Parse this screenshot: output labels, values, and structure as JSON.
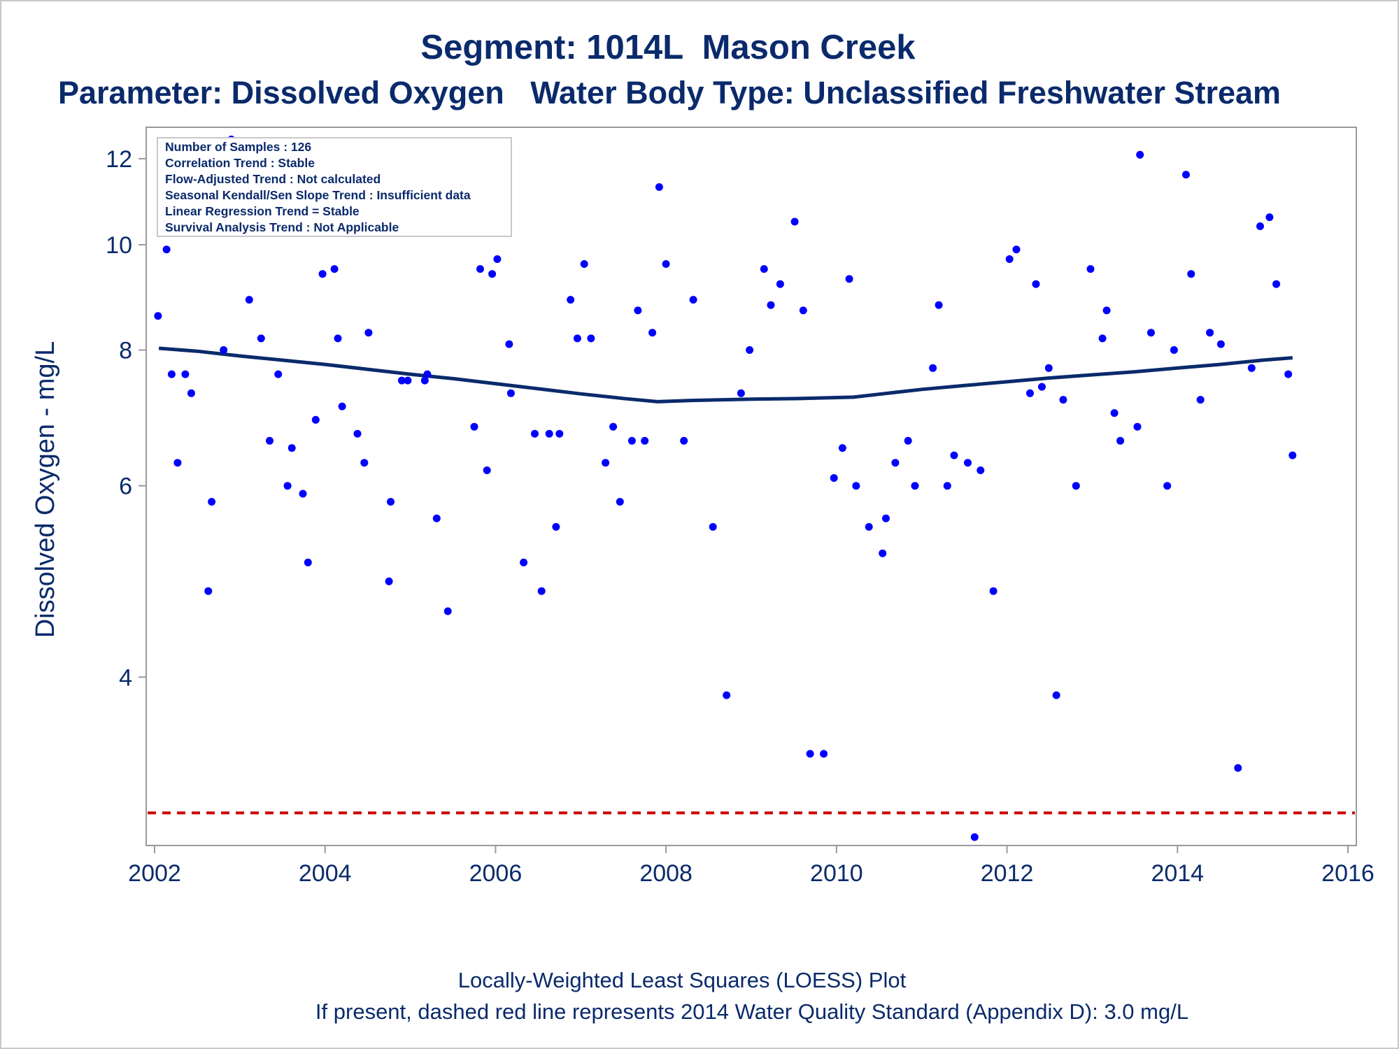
{
  "chart_data": {
    "type": "scatter",
    "title": "Segment: 1014L  Mason Creek",
    "subtitle": "Parameter: Dissolved Oxygen   Water Body Type: Unclassified Freshwater Stream",
    "xlabel": "",
    "ylabel": "Dissolved Oxygen - mg/L",
    "y_scale": "log",
    "xlim": [
      2002,
      2016
    ],
    "ylim": [
      2.85,
      12.6
    ],
    "x_ticks": [
      2002,
      2004,
      2006,
      2008,
      2010,
      2012,
      2014,
      2016
    ],
    "y_ticks": [
      4,
      6,
      8,
      10,
      12
    ],
    "grid": false,
    "stats_box": [
      "Number of Samples : 126",
      "Correlation Trend : Stable",
      "Flow-Adjusted Trend : Not calculated",
      "Seasonal Kendall/Sen Slope Trend : Insufficient data",
      "Linear Regression Trend = Stable",
      "Survival Analysis Trend : Not Applicable"
    ],
    "footnote_1": "Locally-Weighted Least Squares (LOESS) Plot",
    "footnote_2": "If present, dashed red line represents 2014 Water Quality Standard (Appendix D): 3.0 mg/L",
    "standard_line": {
      "y": 3.0,
      "color": "#cc0000"
    },
    "colors": {
      "points": "#0000ff",
      "loess": "#0a2a6b",
      "text": "#0a2a6b",
      "frame": "#9a9a9a"
    },
    "series": [
      {
        "name": "Samples",
        "points": [
          [
            2002.04,
            8.6
          ],
          [
            2002.14,
            9.9
          ],
          [
            2002.2,
            7.6
          ],
          [
            2002.27,
            6.3
          ],
          [
            2002.36,
            7.6
          ],
          [
            2002.43,
            7.3
          ],
          [
            2002.51,
            10.4
          ],
          [
            2002.63,
            4.8
          ],
          [
            2002.67,
            5.8
          ],
          [
            2002.81,
            8.0
          ],
          [
            2002.9,
            12.5
          ],
          [
            2002.94,
            12.3
          ],
          [
            2003.05,
            11.0
          ],
          [
            2003.11,
            8.9
          ],
          [
            2003.25,
            8.2
          ],
          [
            2003.35,
            6.6
          ],
          [
            2003.45,
            7.6
          ],
          [
            2003.56,
            6.0
          ],
          [
            2003.61,
            6.5
          ],
          [
            2003.74,
            5.9
          ],
          [
            2003.8,
            5.1
          ],
          [
            2003.89,
            6.9
          ],
          [
            2003.97,
            9.4
          ],
          [
            2004.11,
            9.5
          ],
          [
            2004.15,
            8.2
          ],
          [
            2004.2,
            7.1
          ],
          [
            2004.38,
            6.7
          ],
          [
            2004.46,
            6.3
          ],
          [
            2004.51,
            8.3
          ],
          [
            2004.75,
            4.9
          ],
          [
            2004.77,
            5.8
          ],
          [
            2004.9,
            7.5
          ],
          [
            2004.97,
            7.5
          ],
          [
            2005.08,
            12.2
          ],
          [
            2005.17,
            7.5
          ],
          [
            2005.2,
            7.6
          ],
          [
            2005.31,
            5.6
          ],
          [
            2005.44,
            4.6
          ],
          [
            2005.75,
            6.8
          ],
          [
            2005.82,
            9.5
          ],
          [
            2005.9,
            6.2
          ],
          [
            2005.96,
            9.4
          ],
          [
            2006.02,
            9.7
          ],
          [
            2006.16,
            8.1
          ],
          [
            2006.18,
            7.3
          ],
          [
            2006.33,
            5.1
          ],
          [
            2006.46,
            6.7
          ],
          [
            2006.54,
            4.8
          ],
          [
            2006.63,
            6.7
          ],
          [
            2006.71,
            5.5
          ],
          [
            2006.75,
            6.7
          ],
          [
            2006.88,
            8.9
          ],
          [
            2006.96,
            8.2
          ],
          [
            2007.04,
            9.6
          ],
          [
            2007.12,
            8.2
          ],
          [
            2007.29,
            6.3
          ],
          [
            2007.38,
            6.8
          ],
          [
            2007.46,
            5.8
          ],
          [
            2007.6,
            6.6
          ],
          [
            2007.67,
            8.7
          ],
          [
            2007.75,
            6.6
          ],
          [
            2007.84,
            8.3
          ],
          [
            2007.92,
            11.3
          ],
          [
            2008.0,
            9.6
          ],
          [
            2008.21,
            6.6
          ],
          [
            2008.32,
            8.9
          ],
          [
            2008.55,
            5.5
          ],
          [
            2008.71,
            3.85
          ],
          [
            2008.88,
            7.3
          ],
          [
            2008.98,
            8.0
          ],
          [
            2009.15,
            9.5
          ],
          [
            2009.23,
            8.8
          ],
          [
            2009.34,
            9.2
          ],
          [
            2009.51,
            10.5
          ],
          [
            2009.61,
            8.7
          ],
          [
            2009.69,
            3.4
          ],
          [
            2009.85,
            3.4
          ],
          [
            2009.97,
            6.1
          ],
          [
            2010.07,
            6.5
          ],
          [
            2010.15,
            9.3
          ],
          [
            2010.23,
            6.0
          ],
          [
            2010.38,
            5.5
          ],
          [
            2010.54,
            5.2
          ],
          [
            2010.58,
            5.6
          ],
          [
            2010.69,
            6.3
          ],
          [
            2010.84,
            6.6
          ],
          [
            2010.92,
            6.0
          ],
          [
            2011.13,
            7.7
          ],
          [
            2011.2,
            8.8
          ],
          [
            2011.3,
            6.0
          ],
          [
            2011.38,
            6.4
          ],
          [
            2011.54,
            6.3
          ],
          [
            2011.62,
            2.85
          ],
          [
            2011.69,
            6.2
          ],
          [
            2011.84,
            4.8
          ],
          [
            2012.03,
            9.7
          ],
          [
            2012.11,
            9.9
          ],
          [
            2012.27,
            7.3
          ],
          [
            2012.34,
            9.2
          ],
          [
            2012.41,
            7.4
          ],
          [
            2012.49,
            7.7
          ],
          [
            2012.58,
            3.85
          ],
          [
            2012.66,
            7.2
          ],
          [
            2012.81,
            6.0
          ],
          [
            2012.98,
            9.5
          ],
          [
            2013.12,
            8.2
          ],
          [
            2013.17,
            8.7
          ],
          [
            2013.26,
            7.0
          ],
          [
            2013.33,
            6.6
          ],
          [
            2013.53,
            6.8
          ],
          [
            2013.56,
            12.1
          ],
          [
            2013.69,
            8.3
          ],
          [
            2013.88,
            6.0
          ],
          [
            2013.96,
            8.0
          ],
          [
            2014.1,
            11.6
          ],
          [
            2014.16,
            9.4
          ],
          [
            2014.27,
            7.2
          ],
          [
            2014.38,
            8.3
          ],
          [
            2014.51,
            8.1
          ],
          [
            2014.71,
            3.3
          ],
          [
            2014.87,
            7.7
          ],
          [
            2014.97,
            10.4
          ],
          [
            2015.08,
            10.6
          ],
          [
            2015.16,
            9.2
          ],
          [
            2015.3,
            7.6
          ],
          [
            2015.35,
            6.4
          ]
        ]
      },
      {
        "name": "LOESS",
        "points": [
          [
            2002.05,
            8.03
          ],
          [
            2002.5,
            7.98
          ],
          [
            2003.0,
            7.9
          ],
          [
            2003.5,
            7.83
          ],
          [
            2004.0,
            7.76
          ],
          [
            2004.5,
            7.68
          ],
          [
            2005.0,
            7.6
          ],
          [
            2005.5,
            7.53
          ],
          [
            2006.0,
            7.45
          ],
          [
            2006.5,
            7.37
          ],
          [
            2007.0,
            7.29
          ],
          [
            2007.5,
            7.22
          ],
          [
            2007.9,
            7.17
          ],
          [
            2008.3,
            7.19
          ],
          [
            2009.0,
            7.21
          ],
          [
            2009.6,
            7.22
          ],
          [
            2010.2,
            7.24
          ],
          [
            2010.6,
            7.3
          ],
          [
            2011.0,
            7.36
          ],
          [
            2011.5,
            7.42
          ],
          [
            2012.0,
            7.48
          ],
          [
            2012.5,
            7.54
          ],
          [
            2013.0,
            7.59
          ],
          [
            2013.5,
            7.64
          ],
          [
            2014.0,
            7.7
          ],
          [
            2014.5,
            7.76
          ],
          [
            2015.0,
            7.83
          ],
          [
            2015.35,
            7.87
          ]
        ]
      }
    ]
  }
}
